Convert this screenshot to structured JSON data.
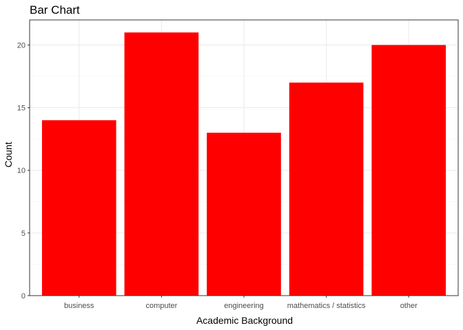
{
  "chart_data": {
    "type": "bar",
    "title": "Bar Chart",
    "xlabel": "Academic Background",
    "ylabel": "Count",
    "categories": [
      "business",
      "computer",
      "engineering",
      "mathematics / statistics",
      "other"
    ],
    "values": [
      14,
      21,
      13,
      17,
      20
    ],
    "ylim": [
      0,
      22
    ],
    "yticks": [
      0,
      5,
      10,
      15,
      20
    ],
    "ytick_labels": [
      "0",
      "5",
      "10",
      "15",
      "20"
    ],
    "grid": true,
    "legend": "none",
    "colors": {
      "bar": "#ff0000",
      "grid_major": "#ebebeb",
      "grid_minor": "#f5f5f5",
      "panel_border": "#333333",
      "tick_label": "#4d4d4d"
    }
  }
}
